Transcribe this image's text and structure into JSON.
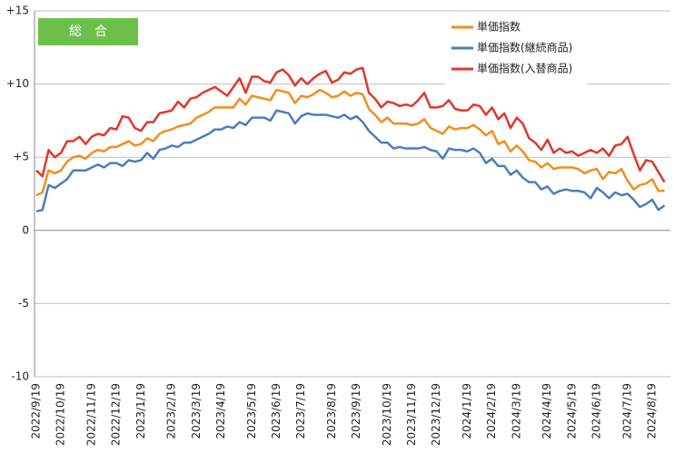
{
  "chart_data": {
    "type": "line",
    "title": "総　合",
    "categories": [
      "2022/9/19",
      null,
      null,
      null,
      "2022/10/19",
      null,
      null,
      null,
      null,
      "2022/11/19",
      null,
      null,
      null,
      "2022/12/19",
      null,
      null,
      null,
      "2023/1/19",
      null,
      null,
      null,
      null,
      "2023/2/19",
      null,
      null,
      null,
      "2023/3/19",
      null,
      null,
      null,
      "2023/4/19",
      null,
      null,
      null,
      null,
      "2023/5/19",
      null,
      null,
      null,
      "2023/6/19",
      null,
      null,
      null,
      "2023/7/19",
      null,
      null,
      null,
      null,
      "2023/8/19",
      null,
      null,
      null,
      "2023/9/19",
      null,
      null,
      null,
      null,
      "2023/10/19",
      null,
      null,
      null,
      "2023/11/19",
      null,
      null,
      null,
      "2023/12/19",
      null,
      null,
      null,
      null,
      "2024/1/19",
      null,
      null,
      null,
      "2024/2/19",
      null,
      null,
      null,
      "2024/3/19",
      null,
      null,
      null,
      null,
      "2024/4/19",
      null,
      null,
      null,
      "2024/5/19",
      null,
      null,
      null,
      "2024/6/19",
      null,
      null,
      null,
      null,
      "2024/7/19",
      null,
      null,
      null,
      "2024/8/19",
      null,
      null
    ],
    "series": [
      {
        "name": "単価指数",
        "color": "#f28e1c",
        "values": [
          2.4,
          2.6,
          4.1,
          3.9,
          4.1,
          4.7,
          5.0,
          5.1,
          4.9,
          5.3,
          5.5,
          5.4,
          5.7,
          5.7,
          5.9,
          6.1,
          5.8,
          5.9,
          6.3,
          6.1,
          6.6,
          6.8,
          6.9,
          7.1,
          7.2,
          7.3,
          7.7,
          7.9,
          8.1,
          8.4,
          8.4,
          8.4,
          8.4,
          9.0,
          8.6,
          9.2,
          9.1,
          9.0,
          8.9,
          9.6,
          9.5,
          9.4,
          8.7,
          9.2,
          9.1,
          9.3,
          9.6,
          9.4,
          9.1,
          9.2,
          9.5,
          9.2,
          9.4,
          9.3,
          8.3,
          7.9,
          7.4,
          7.7,
          7.3,
          7.3,
          7.3,
          7.2,
          7.3,
          7.6,
          7.0,
          6.8,
          6.6,
          7.1,
          6.9,
          7.0,
          7.0,
          7.2,
          6.9,
          6.5,
          6.8,
          5.9,
          6.1,
          5.4,
          5.8,
          5.4,
          4.8,
          4.7,
          4.3,
          4.6,
          4.2,
          4.3,
          4.3,
          4.3,
          4.2,
          3.9,
          4.1,
          4.2,
          3.5,
          4.0,
          3.9,
          4.2,
          3.4,
          2.8,
          3.1,
          3.2,
          3.5,
          2.7,
          2.7
        ]
      },
      {
        "name": "単価指数(継続商品)",
        "color": "#4a7ebb",
        "values": [
          1.3,
          1.4,
          3.1,
          2.9,
          3.2,
          3.5,
          4.1,
          4.1,
          4.1,
          4.3,
          4.5,
          4.3,
          4.6,
          4.6,
          4.4,
          4.8,
          4.7,
          4.8,
          5.3,
          4.9,
          5.5,
          5.6,
          5.8,
          5.7,
          6.0,
          6.0,
          6.2,
          6.4,
          6.6,
          6.9,
          6.9,
          7.1,
          7.0,
          7.4,
          7.2,
          7.7,
          7.7,
          7.7,
          7.5,
          8.2,
          8.1,
          8.0,
          7.3,
          7.8,
          8.0,
          7.9,
          7.9,
          7.9,
          7.8,
          7.7,
          7.9,
          7.6,
          7.8,
          7.4,
          6.8,
          6.4,
          6.0,
          6.0,
          5.6,
          5.7,
          5.6,
          5.6,
          5.6,
          5.7,
          5.5,
          5.4,
          4.9,
          5.6,
          5.5,
          5.5,
          5.4,
          5.6,
          5.3,
          4.6,
          4.9,
          4.4,
          4.4,
          3.8,
          4.1,
          3.6,
          3.3,
          3.3,
          2.8,
          3.0,
          2.5,
          2.7,
          2.8,
          2.7,
          2.7,
          2.6,
          2.2,
          2.9,
          2.6,
          2.2,
          2.6,
          2.4,
          2.5,
          2.1,
          1.6,
          1.8,
          2.1,
          1.4,
          1.7
        ]
      },
      {
        "name": "単価指数(入替商品)",
        "color": "#e2372b",
        "values": [
          4.1,
          3.7,
          5.5,
          5.0,
          5.3,
          6.1,
          6.1,
          6.4,
          5.9,
          6.4,
          6.6,
          6.5,
          7.0,
          6.9,
          7.8,
          7.7,
          7.0,
          6.8,
          7.4,
          7.4,
          8.0,
          8.1,
          8.2,
          8.8,
          8.4,
          9.0,
          9.1,
          9.4,
          9.6,
          9.8,
          9.5,
          9.2,
          9.8,
          10.4,
          9.4,
          10.5,
          10.5,
          10.2,
          10.1,
          10.8,
          11.0,
          10.6,
          9.9,
          10.4,
          10.0,
          10.4,
          10.7,
          10.9,
          10.1,
          10.3,
          10.8,
          10.7,
          11.0,
          11.1,
          9.4,
          9.0,
          8.4,
          8.8,
          8.7,
          8.5,
          8.6,
          8.5,
          8.9,
          9.4,
          8.4,
          8.4,
          8.5,
          8.9,
          8.3,
          8.2,
          8.2,
          8.6,
          8.5,
          7.9,
          8.4,
          7.6,
          8.0,
          7.0,
          7.7,
          7.3,
          6.3,
          6.0,
          5.5,
          6.2,
          5.3,
          5.6,
          5.3,
          5.4,
          5.1,
          5.3,
          5.5,
          5.3,
          5.6,
          5.1,
          5.8,
          5.9,
          6.4,
          5.2,
          4.1,
          4.8,
          4.7,
          4.0,
          3.3
        ]
      }
    ],
    "ylim": [
      -10,
      15
    ],
    "yticks": [
      -10,
      -5,
      0,
      {
        "value": 5,
        "label": "+5"
      },
      {
        "value": 10,
        "label": "+10"
      },
      {
        "value": 15,
        "label": "+15"
      }
    ],
    "grid": true
  }
}
